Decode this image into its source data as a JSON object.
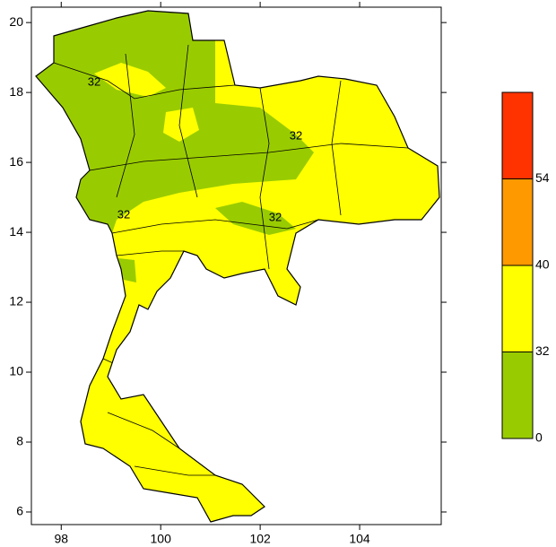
{
  "map": {
    "x_axis": {
      "lim": [
        97.4,
        105.64
      ],
      "ticks": [
        98,
        100,
        102,
        104
      ]
    },
    "y_axis": {
      "lim": [
        5.64,
        20.44
      ],
      "ticks": [
        6,
        8,
        10,
        12,
        14,
        16,
        18,
        20
      ]
    },
    "contour_labels": [
      "32",
      "32",
      "32",
      "32"
    ],
    "legend": {
      "labels": [
        0,
        32,
        40,
        54
      ],
      "colors": [
        "#99cc00",
        "#ffff00",
        "#ff9900",
        "#ff3300"
      ]
    }
  }
}
